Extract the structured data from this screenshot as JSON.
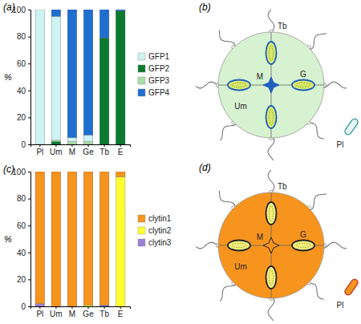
{
  "chart_data": [
    {
      "type": "bar",
      "title": "(a)",
      "stacked": true,
      "legend": "right",
      "categories": [
        "Pl",
        "Um",
        "M",
        "Ge",
        "Tb",
        "E"
      ],
      "ylabel": "%",
      "ylim": [
        0,
        100
      ],
      "yticks": [
        0,
        20,
        40,
        60,
        80,
        100
      ],
      "series": [
        {
          "name": "GFP1",
          "color": "#cdf3f3",
          "values": [
            100,
            92,
            3,
            5,
            0,
            0
          ]
        },
        {
          "name": "GFP2",
          "color": "#0a7a2e",
          "values": [
            0,
            2,
            0,
            0,
            79,
            99
          ]
        },
        {
          "name": "GFP3",
          "color": "#a9dea3",
          "values": [
            0,
            1,
            2,
            2,
            0,
            0
          ]
        },
        {
          "name": "GFP4",
          "color": "#1f6fd1",
          "values": [
            0,
            5,
            95,
            93,
            21,
            1
          ]
        }
      ]
    },
    {
      "type": "bar",
      "title": "(c)",
      "stacked": true,
      "legend": "right",
      "categories": [
        "Pl",
        "Um",
        "M",
        "Ge",
        "Tb",
        "E"
      ],
      "ylabel": "%",
      "ylim": [
        0,
        100
      ],
      "yticks": [
        0,
        20,
        40,
        60,
        80,
        100
      ],
      "series": [
        {
          "name": "clytin1",
          "color": "#f7941d",
          "values": [
            98,
            100,
            100,
            99,
            99,
            4
          ]
        },
        {
          "name": "clytin2",
          "color": "#ffff33",
          "values": [
            0,
            0,
            0,
            1,
            0,
            96
          ]
        },
        {
          "name": "clytin3",
          "color": "#9b7fd4",
          "values": [
            2,
            0,
            0,
            0,
            1,
            0
          ]
        }
      ]
    }
  ],
  "diagrams": [
    {
      "panel": "(b)",
      "labels": {
        "tentacle_bulb": "Tb",
        "manubrium": "M",
        "gonad": "G",
        "umbrella": "Um",
        "planula": "Pl"
      }
    },
    {
      "panel": "(d)",
      "labels": {
        "tentacle_bulb": "Tb",
        "manubrium": "M",
        "gonad": "G",
        "umbrella": "Um",
        "planula": "Pl"
      }
    }
  ]
}
